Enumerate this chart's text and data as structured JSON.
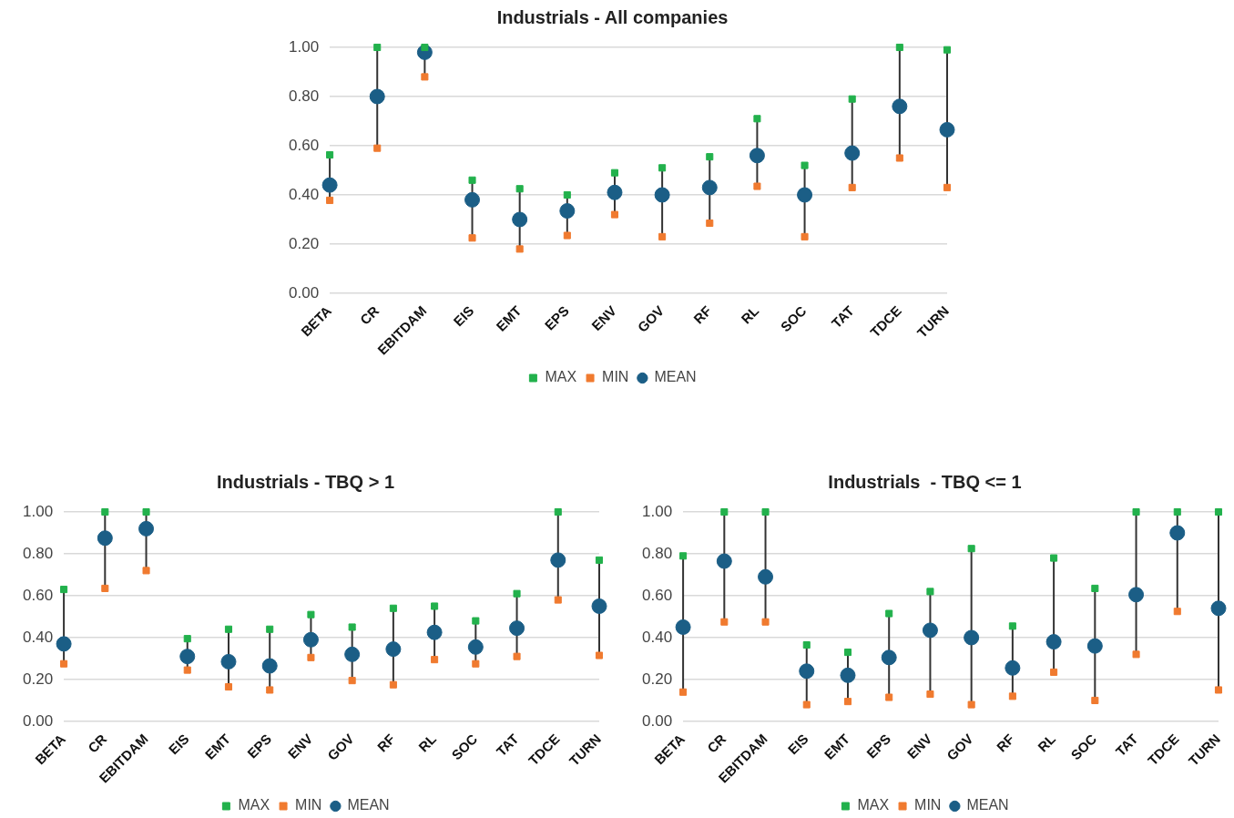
{
  "chart_data": [
    {
      "type": "scatter",
      "title": "Industrials - All companies",
      "categories": [
        "BETA",
        "CR",
        "EBITDAM",
        "EIS",
        "EMT",
        "EPS",
        "ENV",
        "GOV",
        "RF",
        "RL",
        "SOC",
        "TAT",
        "TDCE",
        "TURN"
      ],
      "series": [
        {
          "name": "MEAN",
          "color": "#1b5e86",
          "marker": "circle",
          "values": [
            0.44,
            0.8,
            0.98,
            0.38,
            0.3,
            0.335,
            0.41,
            0.4,
            0.43,
            0.56,
            0.4,
            0.57,
            0.76,
            0.665
          ]
        },
        {
          "name": "MIN",
          "color": "#f07a2f",
          "marker": "square",
          "values": [
            0.378,
            0.59,
            0.88,
            0.225,
            0.18,
            0.235,
            0.32,
            0.23,
            0.285,
            0.435,
            0.23,
            0.43,
            0.55,
            0.43
          ]
        },
        {
          "name": "MAX",
          "color": "#22b14c",
          "marker": "square",
          "values": [
            0.563,
            1.0,
            1.0,
            0.46,
            0.425,
            0.4,
            0.49,
            0.51,
            0.555,
            0.71,
            0.52,
            0.79,
            1.0,
            0.99
          ]
        }
      ],
      "ylim": [
        0,
        1
      ],
      "yticks": [
        {
          "value": 0,
          "label": "0.00"
        },
        {
          "value": 0.2,
          "label": "0.20"
        },
        {
          "value": 0.4,
          "label": "0.40"
        },
        {
          "value": 0.6,
          "label": "0.60"
        },
        {
          "value": 0.8,
          "label": "0.80"
        },
        {
          "value": 1,
          "label": "1.00"
        }
      ],
      "grid": "y",
      "legend": "bottom"
    },
    {
      "type": "scatter",
      "title": "Industrials - TBQ > 1",
      "categories": [
        "BETA",
        "CR",
        "EBITDAM",
        "EIS",
        "EMT",
        "EPS",
        "ENV",
        "GOV",
        "RF",
        "RL",
        "SOC",
        "TAT",
        "TDCE",
        "TURN"
      ],
      "series": [
        {
          "name": "MEAN",
          "color": "#1b5e86",
          "marker": "circle",
          "values": [
            0.37,
            0.875,
            0.92,
            0.31,
            0.285,
            0.265,
            0.39,
            0.32,
            0.345,
            0.425,
            0.355,
            0.445,
            0.77,
            0.55
          ]
        },
        {
          "name": "MIN",
          "color": "#f07a2f",
          "marker": "square",
          "values": [
            0.275,
            0.635,
            0.72,
            0.245,
            0.165,
            0.15,
            0.305,
            0.195,
            0.175,
            0.295,
            0.275,
            0.31,
            0.58,
            0.315
          ]
        },
        {
          "name": "MAX",
          "color": "#22b14c",
          "marker": "square",
          "values": [
            0.63,
            1.0,
            1.0,
            0.395,
            0.44,
            0.44,
            0.51,
            0.45,
            0.54,
            0.55,
            0.48,
            0.61,
            1.0,
            0.77
          ]
        }
      ],
      "ylim": [
        0,
        1
      ],
      "yticks": [
        {
          "value": 0,
          "label": "0.00"
        },
        {
          "value": 0.2,
          "label": "0.20"
        },
        {
          "value": 0.4,
          "label": "0.40"
        },
        {
          "value": 0.6,
          "label": "0.60"
        },
        {
          "value": 0.8,
          "label": "0.80"
        },
        {
          "value": 1,
          "label": "1.00"
        }
      ],
      "grid": "y",
      "legend": "bottom"
    },
    {
      "type": "scatter",
      "title": "Industrials  - TBQ <= 1",
      "categories": [
        "BETA",
        "CR",
        "EBITDAM",
        "EIS",
        "EMT",
        "EPS",
        "ENV",
        "GOV",
        "RF",
        "RL",
        "SOC",
        "TAT",
        "TDCE",
        "TURN"
      ],
      "series": [
        {
          "name": "MEAN",
          "color": "#1b5e86",
          "marker": "circle",
          "values": [
            0.45,
            0.765,
            0.69,
            0.24,
            0.22,
            0.305,
            0.435,
            0.4,
            0.255,
            0.38,
            0.36,
            0.605,
            0.9,
            0.54
          ]
        },
        {
          "name": "MIN",
          "color": "#f07a2f",
          "marker": "square",
          "values": [
            0.14,
            0.475,
            0.475,
            0.08,
            0.095,
            0.115,
            0.13,
            0.08,
            0.12,
            0.235,
            0.1,
            0.32,
            0.525,
            0.15
          ]
        },
        {
          "name": "MAX",
          "color": "#22b14c",
          "marker": "square",
          "values": [
            0.79,
            1.0,
            1.0,
            0.365,
            0.33,
            0.515,
            0.62,
            0.825,
            0.455,
            0.78,
            0.635,
            1.0,
            1.0,
            1.0
          ]
        }
      ],
      "ylim": [
        0,
        1
      ],
      "yticks": [
        {
          "value": 0,
          "label": "0.00"
        },
        {
          "value": 0.2,
          "label": "0.20"
        },
        {
          "value": 0.4,
          "label": "0.40"
        },
        {
          "value": 0.6,
          "label": "0.60"
        },
        {
          "value": 0.8,
          "label": "0.80"
        },
        {
          "value": 1,
          "label": "1.00"
        }
      ],
      "grid": "y",
      "legend": "bottom"
    }
  ]
}
